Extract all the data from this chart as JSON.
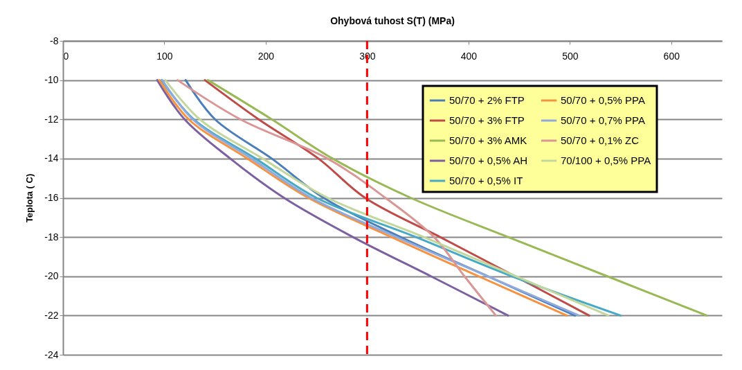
{
  "chart_data": {
    "type": "line",
    "title": "Ohybová tuhost S(T)   (MPa)",
    "ylabel": "Teplota ( C)",
    "xlim": [
      0,
      650
    ],
    "xticks": [
      0,
      100,
      200,
      300,
      400,
      500,
      600
    ],
    "ylim": [
      -24,
      -8
    ],
    "yticks": [
      -8,
      -10,
      -12,
      -14,
      -16,
      -18,
      -20,
      -22,
      -24
    ],
    "grid": "y",
    "legend": "top right",
    "line_style": "solid",
    "marker": "none",
    "ref_lines": [
      {
        "axis": "x",
        "value": 300,
        "color": "#ff0000",
        "line_style": "dashed"
      }
    ],
    "series": [
      {
        "name": "50/70 + 2% FTP",
        "color": "#4a7ebb",
        "x": [
          121,
          150,
          206,
          257,
          333,
          419,
          505
        ],
        "values": [
          -10,
          -12,
          -14,
          -16,
          -18,
          -20,
          -22
        ]
      },
      {
        "name": "50/70 + 3% FTP",
        "color": "#be4b48",
        "x": [
          140,
          193,
          252,
          298,
          372,
          446,
          519
        ],
        "values": [
          -10,
          -12,
          -14,
          -16,
          -18,
          -20,
          -22
        ]
      },
      {
        "name": "50/70 + 3% AMK",
        "color": "#98b954",
        "x": [
          143,
          206,
          266,
          343,
          439,
          537,
          635
        ],
        "values": [
          -10,
          -12,
          -14,
          -16,
          -18,
          -20,
          -22
        ]
      },
      {
        "name": "50/70 + 0,5% AH",
        "color": "#7d60a0",
        "x": [
          93,
          120,
          165,
          218,
          286,
          363,
          439
        ],
        "values": [
          -10,
          -12,
          -14,
          -16,
          -18,
          -20,
          -22
        ]
      },
      {
        "name": "50/70 + 0,5% IT",
        "color": "#46aac5",
        "x": [
          97,
          129,
          190,
          250,
          348,
          443,
          550
        ],
        "values": [
          -10,
          -12,
          -14,
          -16,
          -18,
          -20,
          -22
        ]
      },
      {
        "name": "50/70 + 0,5% PPA",
        "color": "#f69240",
        "x": [
          95,
          124,
          182,
          242,
          324,
          410,
          497
        ],
        "values": [
          -10,
          -12,
          -14,
          -16,
          -18,
          -20,
          -22
        ]
      },
      {
        "name": "50/70 + 0,7% PPA",
        "color": "#8faadc",
        "x": [
          98,
          128,
          186,
          245,
          329,
          419,
          509
        ],
        "values": [
          -10,
          -12,
          -14,
          -16,
          -18,
          -20,
          -22
        ]
      },
      {
        "name": "50/70 + 0,1% ZC",
        "color": "#d99694",
        "x": [
          113,
          175,
          261,
          318,
          366,
          396,
          427
        ],
        "values": [
          -10,
          -12,
          -14,
          -16,
          -18,
          -20,
          -22
        ]
      },
      {
        "name": "70/100 + 0,5% PPA",
        "color": "#c3d69b",
        "x": [
          101,
          135,
          197,
          261,
          356,
          447,
          538
        ],
        "values": [
          -10,
          -12,
          -14,
          -16,
          -18,
          -20,
          -22
        ]
      }
    ]
  }
}
